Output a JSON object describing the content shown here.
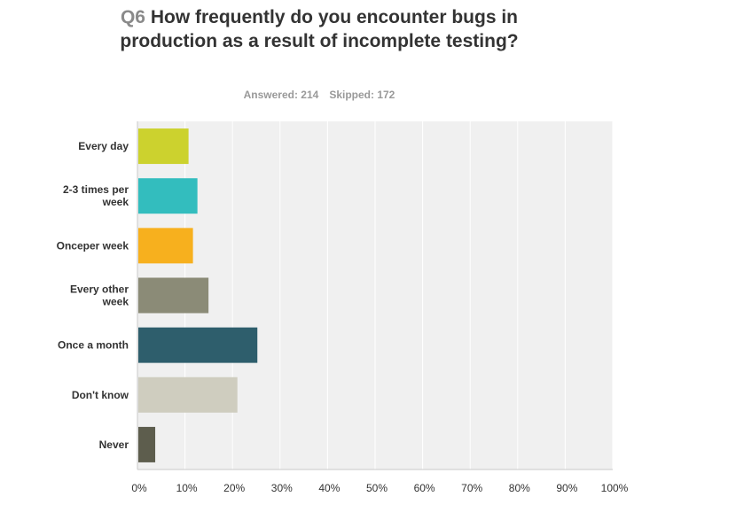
{
  "question": {
    "number": "Q6",
    "text": "How frequently do you encounter bugs in production as a result of incomplete testing?"
  },
  "stats": {
    "answered": "Answered: 214",
    "skipped": "Skipped: 172"
  },
  "chart_data": {
    "type": "bar",
    "orientation": "horizontal",
    "categories": [
      [
        "Every day"
      ],
      [
        "2-3 times per",
        "week"
      ],
      [
        "Onceper week"
      ],
      [
        "Every other",
        "week"
      ],
      [
        "Once a month"
      ],
      [
        "Don't know"
      ],
      [
        "Never"
      ]
    ],
    "values": [
      10.75,
      12.62,
      11.68,
      14.95,
      25.23,
      21.03,
      3.74
    ],
    "colors": [
      "#ccd22e",
      "#33bdbe",
      "#f7b01e",
      "#8b8b77",
      "#2e5e6c",
      "#cfcdbf",
      "#5d5d4d"
    ],
    "xlim": [
      0,
      100
    ],
    "x_ticks": [
      "0%",
      "10%",
      "20%",
      "30%",
      "40%",
      "50%",
      "60%",
      "70%",
      "80%",
      "90%",
      "100%"
    ],
    "grid": true,
    "background": "#f0f0f0"
  }
}
